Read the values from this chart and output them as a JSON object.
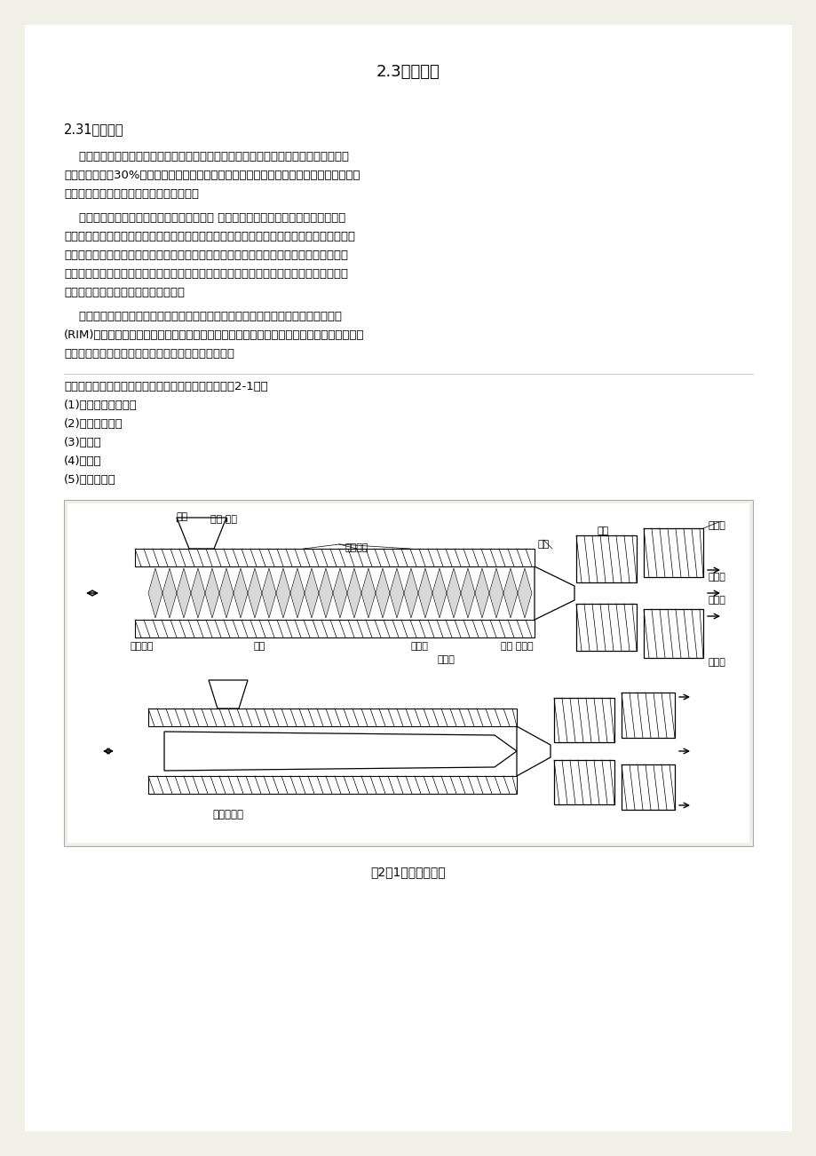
{
  "bg_color": "#f0efe8",
  "page_bg": "#ffffff",
  "title": "2.3注射成型",
  "section_title": "2.31注射成型",
  "para1_lines": [
    "    注塑主要用于热塑性塑料零件的生产，也是最古老的方法之一。目前注塑成型占所有塑",
    "料树脂消费量的30%。典型的注塑产品是杯，容器，工具外壳，手柄，旋钮，电气和通信部",
    "件（如电话接收器），玩具，和水暖配件。"
  ],
  "para2_lines": [
    "    聚合物熔体由于其分子量高，所以粘度很高 他们不能像金属一样在重力流作用下直接",
    "倒进模具中，但在高压下，必须强制进入模具中。因此，金属铸件的力学性能主要是由模具壁",
    "的传热率决定的，这决定了在最后的铸造中晶粒尺寸和晶粒取向。在注射成型中的熔体注射",
    "在高压力产生的剪切力是最终在材料的分子取向的主要原因。因此，成品的机械性能受模具",
    "内注入条件和的冷却条件两者的影响。"
  ],
  "para3_lines": [
    "    注塑已应用于热塑性塑料和热固性材料，泡沫部分，并已修改以产生的反应注射成型",
    "(RIM)过程中，热固性树脂系统的两个组件同时注入和快速聚合在模具内。然而大多数注射成",
    "型是热塑性塑料进行，后面的讨论集中于这样的造型。"
  ],
  "list_intro": "一个典型的注塑成型周期或序列由五个阶段组成（见图2-1）：",
  "list_items": [
    "(1)注射或模具填充；",
    "(2)包装或压缩；",
    "(3)保压；",
    "(4)冷却；",
    "(5)部分弹射。"
  ],
  "fig_caption": "图2－1注射成型过程",
  "sub_label": "旋转和往复"
}
